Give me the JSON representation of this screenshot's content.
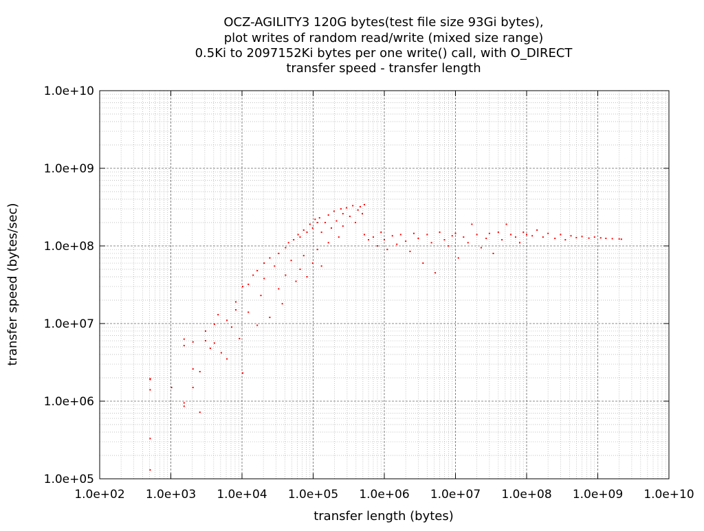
{
  "chart_data": {
    "type": "scatter",
    "title_lines": [
      "OCZ-AGILITY3 120G bytes(test file size 93Gi bytes),",
      "plot writes of random read/write (mixed size range)",
      "0.5Ki to 2097152Ki bytes per one write() call, with O_DIRECT",
      "transfer speed - transfer length"
    ],
    "xlabel": "transfer length (bytes)",
    "ylabel": "transfer speed (bytes/sec)",
    "x_scale": "log",
    "y_scale": "log",
    "xlim": [
      100,
      10000000000
    ],
    "ylim": [
      100000,
      10000000000
    ],
    "x_ticks": [
      {
        "value": 100,
        "label": "1.0e+02"
      },
      {
        "value": 1000,
        "label": "1.0e+03"
      },
      {
        "value": 10000,
        "label": "1.0e+04"
      },
      {
        "value": 100000,
        "label": "1.0e+05"
      },
      {
        "value": 1000000,
        "label": "1.0e+06"
      },
      {
        "value": 10000000,
        "label": "1.0e+07"
      },
      {
        "value": 100000000,
        "label": "1.0e+08"
      },
      {
        "value": 1000000000,
        "label": "1.0e+09"
      },
      {
        "value": 10000000000,
        "label": "1.0e+10"
      }
    ],
    "y_ticks": [
      {
        "value": 100000,
        "label": "1.0e+05"
      },
      {
        "value": 1000000,
        "label": "1.0e+06"
      },
      {
        "value": 10000000,
        "label": "1.0e+07"
      },
      {
        "value": 100000000,
        "label": "1.0e+08"
      },
      {
        "value": 1000000000,
        "label": "1.0e+09"
      },
      {
        "value": 10000000000,
        "label": "1.0e+10"
      }
    ],
    "grid": true,
    "point_color": "#ff0000",
    "series": [
      {
        "points": [
          [
            512,
            1900000
          ],
          [
            512,
            1400000
          ],
          [
            512,
            330000
          ],
          [
            512,
            130000
          ],
          [
            512,
            1950000
          ],
          [
            1024,
            1500000
          ],
          [
            1536,
            5200000
          ],
          [
            1536,
            6300000
          ],
          [
            1536,
            950000
          ],
          [
            1536,
            860000
          ],
          [
            2048,
            5800000
          ],
          [
            2048,
            2600000
          ],
          [
            2048,
            1500000
          ],
          [
            2560,
            720000
          ],
          [
            2560,
            2400000
          ],
          [
            3072,
            8000000
          ],
          [
            3072,
            6000000
          ],
          [
            3584,
            4800000
          ],
          [
            4096,
            9800000
          ],
          [
            4096,
            5600000
          ],
          [
            4608,
            13000000
          ],
          [
            5120,
            4200000
          ],
          [
            6144,
            11000000
          ],
          [
            6144,
            3500000
          ],
          [
            7168,
            9000000
          ],
          [
            8192,
            15000000
          ],
          [
            8192,
            19000000
          ],
          [
            9216,
            6400000
          ],
          [
            10240,
            30000000
          ],
          [
            10240,
            2300000
          ],
          [
            12288,
            32000000
          ],
          [
            12288,
            14000000
          ],
          [
            14336,
            42000000
          ],
          [
            16384,
            48000000
          ],
          [
            16384,
            9500000
          ],
          [
            18432,
            23000000
          ],
          [
            20480,
            60000000
          ],
          [
            20480,
            38000000
          ],
          [
            24576,
            70000000
          ],
          [
            24576,
            12000000
          ],
          [
            28672,
            55000000
          ],
          [
            32768,
            80000000
          ],
          [
            32768,
            28000000
          ],
          [
            36864,
            18000000
          ],
          [
            40960,
            95000000
          ],
          [
            40960,
            42000000
          ],
          [
            45056,
            110000000
          ],
          [
            49152,
            65000000
          ],
          [
            53248,
            120000000
          ],
          [
            57344,
            35000000
          ],
          [
            61440,
            140000000
          ],
          [
            65536,
            130000000
          ],
          [
            65536,
            50000000
          ],
          [
            73728,
            160000000
          ],
          [
            73728,
            75000000
          ],
          [
            81920,
            150000000
          ],
          [
            81920,
            40000000
          ],
          [
            90112,
            190000000
          ],
          [
            98304,
            170000000
          ],
          [
            98304,
            60000000
          ],
          [
            106496,
            220000000
          ],
          [
            114688,
            200000000
          ],
          [
            114688,
            90000000
          ],
          [
            122880,
            230000000
          ],
          [
            131072,
            150000000
          ],
          [
            131072,
            55000000
          ],
          [
            147456,
            200000000
          ],
          [
            163840,
            250000000
          ],
          [
            163840,
            110000000
          ],
          [
            180224,
            170000000
          ],
          [
            196608,
            280000000
          ],
          [
            212992,
            210000000
          ],
          [
            229376,
            130000000
          ],
          [
            245760,
            300000000
          ],
          [
            262144,
            260000000
          ],
          [
            262144,
            180000000
          ],
          [
            294912,
            310000000
          ],
          [
            327680,
            240000000
          ],
          [
            360448,
            330000000
          ],
          [
            393216,
            200000000
          ],
          [
            425984,
            290000000
          ],
          [
            458752,
            320000000
          ],
          [
            491520,
            260000000
          ],
          [
            524288,
            340000000
          ],
          [
            524288,
            140000000
          ],
          [
            600000,
            120000000
          ],
          [
            700000,
            130000000
          ],
          [
            800000,
            100000000
          ],
          [
            900000,
            150000000
          ],
          [
            1000000,
            120000000
          ],
          [
            1100000,
            90000000
          ],
          [
            1300000,
            135000000
          ],
          [
            1500000,
            105000000
          ],
          [
            1700000,
            140000000
          ],
          [
            2000000,
            115000000
          ],
          [
            2300000,
            85000000
          ],
          [
            2600000,
            145000000
          ],
          [
            3000000,
            125000000
          ],
          [
            3500000,
            60000000
          ],
          [
            4000000,
            140000000
          ],
          [
            4600000,
            110000000
          ],
          [
            5200000,
            45000000
          ],
          [
            6000000,
            150000000
          ],
          [
            7000000,
            120000000
          ],
          [
            8000000,
            100000000
          ],
          [
            9000000,
            135000000
          ],
          [
            10000000,
            145000000
          ],
          [
            11000000,
            70000000
          ],
          [
            13000000,
            130000000
          ],
          [
            15000000,
            110000000
          ],
          [
            17000000,
            190000000
          ],
          [
            20000000,
            140000000
          ],
          [
            23000000,
            95000000
          ],
          [
            27000000,
            125000000
          ],
          [
            30000000,
            145000000
          ],
          [
            34000000,
            80000000
          ],
          [
            40000000,
            150000000
          ],
          [
            45000000,
            120000000
          ],
          [
            52000000,
            190000000
          ],
          [
            60000000,
            140000000
          ],
          [
            70000000,
            130000000
          ],
          [
            80000000,
            110000000
          ],
          [
            90000000,
            150000000
          ],
          [
            100000000,
            140000000
          ],
          [
            120000000,
            135000000
          ],
          [
            140000000,
            160000000
          ],
          [
            170000000,
            130000000
          ],
          [
            200000000,
            145000000
          ],
          [
            250000000,
            125000000
          ],
          [
            300000000,
            140000000
          ],
          [
            350000000,
            120000000
          ],
          [
            420000000,
            135000000
          ],
          [
            500000000,
            128000000
          ],
          [
            600000000,
            132000000
          ],
          [
            750000000,
            126000000
          ],
          [
            900000000,
            130000000
          ],
          [
            1100000000,
            127000000
          ],
          [
            1300000000,
            125000000
          ],
          [
            1600000000,
            124000000
          ],
          [
            2000000000,
            123000000
          ],
          [
            2147483648,
            122000000
          ]
        ]
      }
    ]
  }
}
